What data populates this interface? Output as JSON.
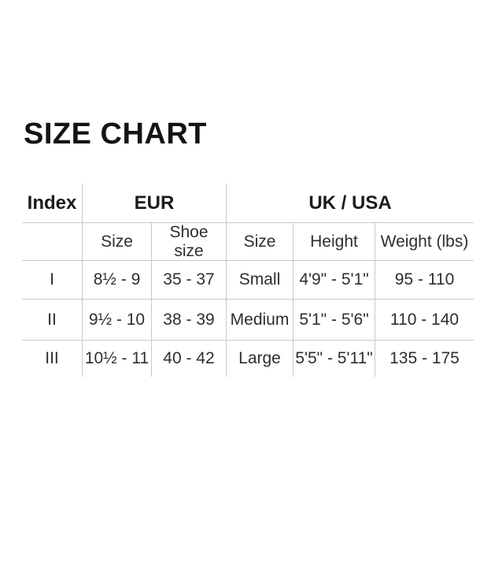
{
  "title": "SIZE CHART",
  "colors": {
    "background": "#ffffff",
    "title_text": "#141414",
    "header_text": "#1c1c1c",
    "body_text": "#2e2e2e",
    "grid_line": "#c9c9c9"
  },
  "chart_data": {
    "type": "table",
    "title": "SIZE CHART",
    "group_headers": [
      "Index",
      "EUR",
      "UK / USA"
    ],
    "sub_headers": [
      "",
      "Size",
      "Shoe size",
      "Size",
      "Height",
      "Weight (lbs)"
    ],
    "rows": [
      [
        "I",
        "8½ - 9",
        "35 - 37",
        "Small",
        "4'9\" - 5'1\"",
        "95 - 110"
      ],
      [
        "II",
        "9½ - 10",
        "38 - 39",
        "Medium",
        "5'1\" - 5'6\"",
        "110 - 140"
      ],
      [
        "III",
        "10½ - 11",
        "40 - 42",
        "Large",
        "5'5\" - 5'11\"",
        "135 - 175"
      ]
    ],
    "layout": {
      "grid": "inner lines only, no outer frame, no line below last row",
      "legend_position": "none"
    }
  }
}
